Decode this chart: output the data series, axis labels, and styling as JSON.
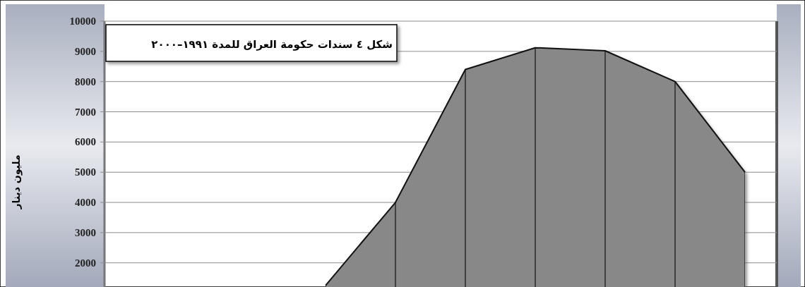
{
  "chart_data": {
    "type": "area",
    "title": "شكل ٤ سندات حكومة العراق للمدة ١٩٩١–٢٠٠٠",
    "ylabel": "مليون دينار",
    "categories": [
      null,
      null,
      null,
      null,
      null,
      null,
      null,
      null,
      null,
      null
    ],
    "series": [
      {
        "color": "#888888",
        "values": [
          null,
          null,
          null,
          1250,
          4000,
          8400,
          9120,
          9020,
          8000,
          5000
        ]
      }
    ],
    "ylim": [
      1200,
      10000
    ],
    "yticks": [
      2000,
      3000,
      4000,
      5000,
      6000,
      7000,
      8000,
      9000,
      10000
    ],
    "grid": true
  }
}
